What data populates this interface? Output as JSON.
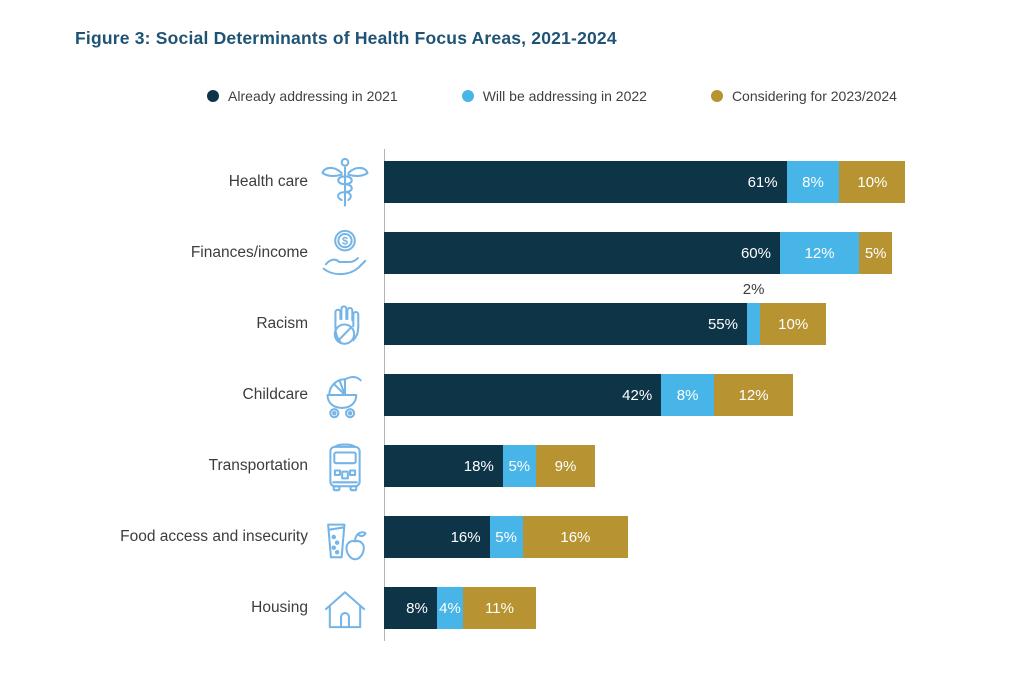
{
  "title": "Figure 3: Social Determinants of Health Focus Areas, 2021-2024",
  "legend": [
    {
      "label": "Already addressing in 2021",
      "color": "#0e3448"
    },
    {
      "label": "Will be addressing in 2022",
      "color": "#47b5e8"
    },
    {
      "label": "Considering for 2023/2024",
      "color": "#b79431"
    }
  ],
  "chart_data": {
    "type": "bar",
    "orientation": "horizontal",
    "stacked": true,
    "title": "Figure 3: Social Determinants of Health Focus Areas, 2021-2024",
    "categories": [
      "Health care",
      "Finances/income",
      "Racism",
      "Childcare",
      "Transportation",
      "Food access and insecurity",
      "Housing"
    ],
    "icons": [
      "caduceus-icon",
      "coin-hand-icon",
      "stop-hand-icon",
      "stroller-icon",
      "bus-icon",
      "food-drink-icon",
      "house-icon"
    ],
    "series": [
      {
        "name": "Already addressing in 2021",
        "color": "#0e3448",
        "values": [
          61,
          60,
          55,
          42,
          18,
          16,
          8
        ]
      },
      {
        "name": "Will be addressing in 2022",
        "color": "#47b5e8",
        "values": [
          8,
          12,
          2,
          8,
          5,
          5,
          4
        ]
      },
      {
        "name": "Considering for 2023/2024",
        "color": "#b79431",
        "values": [
          10,
          5,
          10,
          12,
          9,
          16,
          11
        ]
      }
    ],
    "value_labels": [
      [
        "61%",
        "60%",
        "55%",
        "42%",
        "18%",
        "16%",
        "8%"
      ],
      [
        "8%",
        "12%",
        "2%",
        "8%",
        "5%",
        "5%",
        "4%"
      ],
      [
        "10%",
        "5%",
        "10%",
        "12%",
        "9%",
        "16%",
        "11%"
      ]
    ],
    "xlim": [
      0,
      80
    ],
    "grid": false,
    "legend_position": "top",
    "axis_color": "#b3b3b3",
    "icon_color": "#74b4e6",
    "value_label_color_inside": "#ffffff",
    "value_label_color_outside": "#3d3d3d"
  }
}
